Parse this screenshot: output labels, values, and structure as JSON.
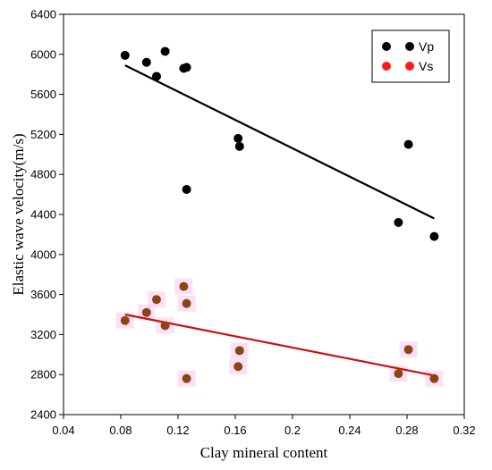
{
  "chart_data": {
    "type": "scatter",
    "title": "",
    "xlabel": "Clay mineral content",
    "ylabel": "Elastic wave velocity(m/s)",
    "xlim": [
      0.04,
      0.32
    ],
    "ylim": [
      2400,
      6400
    ],
    "xticks": [
      0.04,
      0.08,
      0.12,
      0.16,
      0.2,
      0.24,
      0.28,
      0.32
    ],
    "xtick_labels": [
      "0.04",
      "0.08",
      "0.12",
      "0.16",
      "0.2",
      "0.24",
      "0.28",
      "0.32"
    ],
    "yticks": [
      2400,
      2800,
      3200,
      3600,
      4000,
      4400,
      4800,
      5200,
      5600,
      6000,
      6400
    ],
    "ytick_labels": [
      "2400",
      "2800",
      "3200",
      "3600",
      "4000",
      "4400",
      "4800",
      "5200",
      "5600",
      "6000",
      "6400"
    ],
    "grid": false,
    "legend_position": "top-right",
    "series": [
      {
        "name": "Vp",
        "color": "#000000",
        "points": [
          [
            0.083,
            5990
          ],
          [
            0.098,
            5920
          ],
          [
            0.105,
            5780
          ],
          [
            0.111,
            6030
          ],
          [
            0.124,
            5860
          ],
          [
            0.126,
            5870
          ],
          [
            0.126,
            4650
          ],
          [
            0.162,
            5160
          ],
          [
            0.163,
            5080
          ],
          [
            0.274,
            4320
          ],
          [
            0.281,
            5100
          ],
          [
            0.299,
            4180
          ]
        ],
        "trend": {
          "color": "#000000",
          "x": [
            0.083,
            0.299
          ],
          "y": [
            5890,
            4360
          ]
        }
      },
      {
        "name": "Vs",
        "color": "#8b4513",
        "points": [
          [
            0.083,
            3340
          ],
          [
            0.098,
            3420
          ],
          [
            0.105,
            3550
          ],
          [
            0.111,
            3290
          ],
          [
            0.124,
            3680
          ],
          [
            0.126,
            3510
          ],
          [
            0.126,
            2760
          ],
          [
            0.162,
            2880
          ],
          [
            0.163,
            3040
          ],
          [
            0.274,
            2810
          ],
          [
            0.281,
            3050
          ],
          [
            0.299,
            2760
          ]
        ],
        "trend": {
          "color": "#cc1111",
          "x": [
            0.083,
            0.299
          ],
          "y": [
            3400,
            2790
          ]
        }
      }
    ]
  },
  "legend": {
    "items": [
      {
        "label": "Vp",
        "color": "#000000"
      },
      {
        "label": "Vs",
        "color": "#ff1a1a"
      }
    ]
  }
}
